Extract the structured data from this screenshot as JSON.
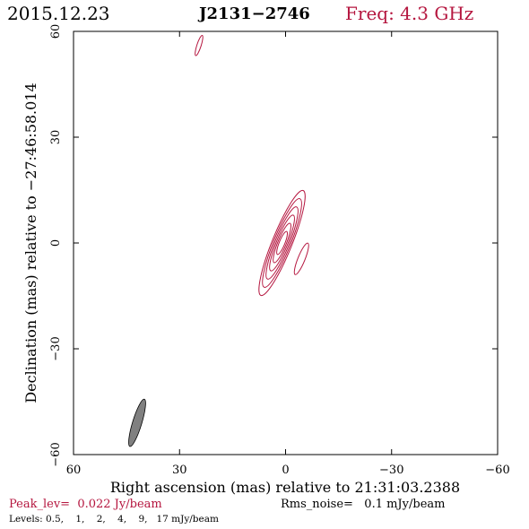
{
  "header": {
    "date": "2015.12.23",
    "source": "J2131−2746",
    "freq": "Freq: 4.3 GHz"
  },
  "footer": {
    "peak": "Peak_lev=  0.022 Jy/beam",
    "noise": "Rms_noise=   0.1 mJy/beam",
    "levels": "Levels: 0.5,    1,    2,    4,    9,   17 mJy/beam"
  },
  "colors": {
    "contour": "#b5163f",
    "beam_fill": "#808080",
    "axis": "#000000"
  },
  "chart_data": {
    "type": "contour",
    "xlabel": "Right ascension (mas) relative to 21:31:03.2388",
    "ylabel": "Declination (mas) relative to −27:46:58.014",
    "xlim": [
      60,
      -60
    ],
    "ylim": [
      -60,
      60
    ],
    "x_ticks": [
      60,
      30,
      0,
      -30,
      -60
    ],
    "y_ticks": [
      -60,
      -30,
      0,
      30,
      60
    ],
    "x_tick_labels": [
      "60",
      "30",
      "0",
      "−30",
      "−60"
    ],
    "y_tick_labels": [
      "−60",
      "−30",
      "0",
      "30",
      "60"
    ],
    "contour_levels_mJy": [
      0.5,
      1,
      2,
      4,
      9,
      17
    ],
    "core_component": {
      "center_mas": [
        1.0,
        0.0
      ],
      "contours": [
        {
          "a": 16.0,
          "b": 2.8
        },
        {
          "a": 13.5,
          "b": 2.4
        },
        {
          "a": 11.0,
          "b": 2.0
        },
        {
          "a": 8.5,
          "b": 1.6
        },
        {
          "a": 6.0,
          "b": 1.2
        },
        {
          "a": 3.5,
          "b": 0.8
        }
      ],
      "angle_deg": 22
    },
    "secondary_component": {
      "center_mas": [
        -4.5,
        -4.5
      ],
      "a": 4.8,
      "b": 1.0,
      "angle_deg": 22
    },
    "remote_component": {
      "center_mas": [
        24.5,
        56.0
      ],
      "a": 3.0,
      "b": 0.6,
      "angle_deg": 18
    },
    "beam": {
      "center_mas": [
        42.0,
        -51.0
      ],
      "a": 7.0,
      "b": 1.3,
      "angle_deg": 17
    }
  }
}
